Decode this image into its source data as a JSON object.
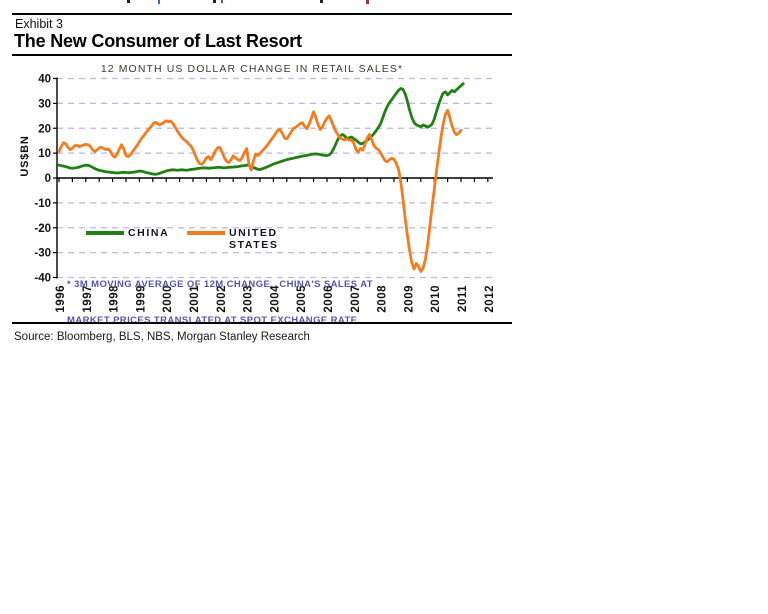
{
  "page": {
    "exhibit_label": "Exhibit 3",
    "title": "The New Consumer of Last Resort",
    "source_line": "Source: Bloomberg, BLS, NBS, Morgan Stanley Research"
  },
  "chart_data": {
    "type": "line",
    "title": "12 MONTH US DOLLAR CHANGE IN RETAIL SALES*",
    "ylabel": "US$BN",
    "ylim": [
      -40,
      40
    ],
    "yticks": [
      40,
      30,
      20,
      10,
      0,
      -10,
      -20,
      -30,
      -40
    ],
    "xticks": [
      1996,
      1997,
      1998,
      1999,
      2000,
      2001,
      2002,
      2003,
      2004,
      2005,
      2006,
      2007,
      2008,
      2009,
      2010,
      2011,
      2012
    ],
    "x_start": 1996.0,
    "points_per_year": 12,
    "grid": "horizontal dashed",
    "legend_position": "inside lower-left",
    "footnote_line1": "* 3M MOVING AVERAGE OF 12M CHANGE.  CHINA'S SALES AT",
    "footnote_line2": "MARKET PRICES TRANSLATED AT SPOT EXCHANGE RATE.",
    "colors": {
      "china": "#208013",
      "united_states": "#f47c20",
      "grid": "#b9b9e1",
      "axis": "#000000",
      "footnote": "#5555aa"
    },
    "series": [
      {
        "name": "CHINA",
        "color": "#208013",
        "values": [
          5.2,
          5.0,
          4.8,
          4.6,
          4.3,
          4.0,
          3.9,
          4.0,
          4.2,
          4.4,
          4.7,
          5.0,
          5.2,
          5.1,
          4.8,
          4.3,
          3.8,
          3.4,
          3.1,
          2.9,
          2.7,
          2.5,
          2.4,
          2.3,
          2.2,
          2.1,
          2.0,
          2.1,
          2.2,
          2.3,
          2.2,
          2.1,
          2.2,
          2.3,
          2.4,
          2.6,
          2.8,
          2.7,
          2.5,
          2.2,
          2.0,
          1.8,
          1.6,
          1.5,
          1.6,
          1.9,
          2.2,
          2.5,
          2.8,
          3.0,
          3.2,
          3.3,
          3.2,
          3.1,
          3.2,
          3.3,
          3.2,
          3.1,
          3.2,
          3.4,
          3.5,
          3.6,
          3.8,
          3.9,
          4.0,
          4.1,
          4.0,
          3.9,
          4.0,
          4.1,
          4.2,
          4.3,
          4.3,
          4.2,
          4.1,
          4.2,
          4.3,
          4.4,
          4.4,
          4.5,
          4.6,
          4.7,
          4.9,
          5.0,
          5.2,
          5.1,
          4.7,
          4.3,
          3.9,
          3.5,
          3.4,
          3.7,
          4.0,
          4.4,
          4.8,
          5.2,
          5.6,
          5.9,
          6.2,
          6.5,
          6.8,
          7.1,
          7.4,
          7.6,
          7.8,
          8.0,
          8.2,
          8.4,
          8.6,
          8.8,
          9.0,
          9.1,
          9.3,
          9.5,
          9.6,
          9.7,
          9.6,
          9.4,
          9.2,
          9.1,
          9.0,
          9.3,
          10.2,
          11.8,
          13.8,
          15.8,
          17.0,
          17.5,
          16.8,
          15.8,
          16.2,
          16.5,
          15.8,
          15.2,
          14.4,
          13.7,
          13.9,
          14.5,
          15.2,
          15.9,
          16.8,
          17.8,
          19.0,
          20.3,
          21.8,
          24.3,
          26.8,
          28.8,
          30.3,
          31.6,
          32.8,
          34.0,
          35.2,
          36.0,
          35.7,
          33.8,
          30.8,
          27.3,
          24.3,
          22.3,
          21.4,
          21.0,
          20.6,
          21.3,
          21.0,
          20.4,
          20.9,
          21.6,
          23.6,
          26.6,
          29.6,
          32.1,
          34.1,
          34.6,
          33.4,
          34.3,
          35.2,
          34.6,
          35.5,
          36.3,
          37.1,
          37.9
        ]
      },
      {
        "name": "UNITED STATES",
        "color": "#f47c20",
        "values": [
          10.6,
          12.6,
          14.2,
          13.7,
          12.4,
          11.4,
          12.0,
          12.9,
          13.2,
          12.6,
          12.9,
          13.3,
          13.5,
          13.4,
          12.7,
          11.4,
          10.6,
          11.3,
          12.1,
          12.4,
          11.8,
          11.4,
          11.7,
          10.7,
          9.1,
          8.4,
          9.6,
          11.6,
          13.4,
          11.7,
          9.0,
          8.6,
          9.4,
          10.6,
          11.9,
          13.1,
          14.6,
          15.9,
          17.1,
          18.3,
          19.4,
          20.4,
          21.6,
          22.4,
          21.9,
          21.4,
          21.8,
          22.4,
          23.0,
          22.6,
          22.9,
          21.9,
          20.4,
          18.9,
          17.5,
          16.4,
          15.4,
          14.7,
          13.8,
          12.9,
          11.4,
          9.2,
          7.0,
          5.8,
          5.5,
          6.6,
          8.1,
          8.6,
          7.4,
          8.9,
          10.9,
          12.1,
          12.3,
          10.4,
          8.2,
          6.7,
          6.2,
          7.3,
          8.9,
          8.2,
          7.4,
          7.0,
          8.1,
          10.3,
          11.8,
          5.9,
          3.2,
          6.6,
          9.6,
          9.0,
          9.9,
          10.9,
          11.9,
          12.9,
          14.1,
          15.4,
          16.6,
          17.9,
          19.2,
          19.5,
          17.9,
          16.1,
          15.8,
          17.1,
          18.6,
          19.9,
          20.4,
          21.1,
          21.9,
          22.2,
          20.8,
          19.8,
          21.6,
          24.1,
          26.6,
          24.4,
          21.4,
          19.5,
          20.6,
          22.6,
          24.1,
          25.0,
          22.9,
          20.7,
          18.7,
          17.2,
          16.1,
          15.6,
          15.3,
          15.7,
          15.2,
          15.3,
          14.0,
          11.4,
          10.4,
          11.9,
          11.2,
          13.6,
          16.1,
          17.5,
          15.4,
          13.1,
          12.0,
          11.4,
          10.1,
          8.5,
          7.0,
          6.5,
          7.4,
          7.9,
          7.5,
          6.0,
          3.4,
          -1.2,
          -8.2,
          -16.2,
          -23.2,
          -29.2,
          -34.2,
          -36.6,
          -34.4,
          -35.6,
          -37.6,
          -36.4,
          -32.8,
          -27.4,
          -19.8,
          -11.8,
          -4.8,
          2.6,
          9.6,
          16.1,
          21.6,
          25.6,
          27.2,
          24.4,
          20.9,
          18.4,
          17.4,
          18.1,
          19.2
        ]
      }
    ]
  }
}
